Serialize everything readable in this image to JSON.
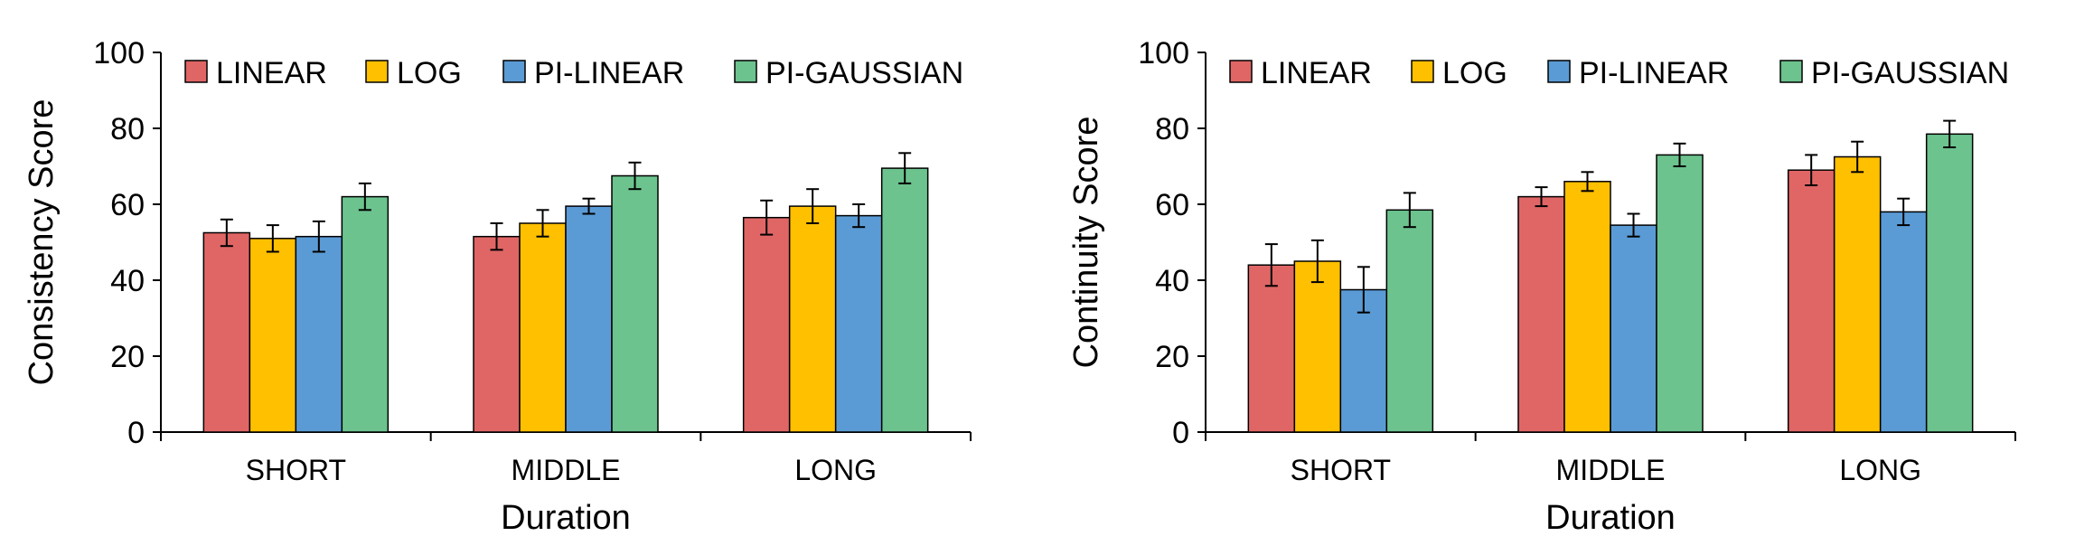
{
  "colors": {
    "LINEAR": "#e06666",
    "LOG": "#ffc000",
    "PI-LINEAR": "#5b9bd5",
    "PI-GAUSSIAN": "#6cc38e",
    "axis": "#000000"
  },
  "chart_data": [
    {
      "type": "bar",
      "title": "",
      "xlabel": "Duration",
      "ylabel": "Consistency Score",
      "ylim": [
        0,
        100
      ],
      "yticks": [
        "0",
        "20",
        "40",
        "60",
        "80",
        "100"
      ],
      "grid": false,
      "legend_position": "top",
      "categories": [
        "SHORT",
        "MIDDLE",
        "LONG"
      ],
      "series": [
        {
          "name": "LINEAR",
          "values": [
            52.5,
            51.5,
            56.5
          ],
          "errors": [
            3.5,
            3.5,
            4.5
          ]
        },
        {
          "name": "LOG",
          "values": [
            51.0,
            55.0,
            59.5
          ],
          "errors": [
            3.5,
            3.5,
            4.5
          ]
        },
        {
          "name": "PI-LINEAR",
          "values": [
            51.5,
            59.5,
            57.0
          ],
          "errors": [
            4.0,
            2.0,
            3.0
          ]
        },
        {
          "name": "PI-GAUSSIAN",
          "values": [
            62.0,
            67.5,
            69.5
          ],
          "errors": [
            3.5,
            3.5,
            4.0
          ]
        }
      ]
    },
    {
      "type": "bar",
      "title": "",
      "xlabel": "Duration",
      "ylabel": "Continuity Score",
      "ylim": [
        0,
        100
      ],
      "yticks": [
        "0",
        "20",
        "40",
        "60",
        "80",
        "100"
      ],
      "grid": false,
      "legend_position": "top",
      "categories": [
        "SHORT",
        "MIDDLE",
        "LONG"
      ],
      "series": [
        {
          "name": "LINEAR",
          "values": [
            44.0,
            62.0,
            69.0
          ],
          "errors": [
            5.5,
            2.5,
            4.0
          ]
        },
        {
          "name": "LOG",
          "values": [
            45.0,
            66.0,
            72.5
          ],
          "errors": [
            5.5,
            2.5,
            4.0
          ]
        },
        {
          "name": "PI-LINEAR",
          "values": [
            37.5,
            54.5,
            58.0
          ],
          "errors": [
            6.0,
            3.0,
            3.5
          ]
        },
        {
          "name": "PI-GAUSSIAN",
          "values": [
            58.5,
            73.0,
            78.5
          ],
          "errors": [
            4.5,
            3.0,
            3.5
          ]
        }
      ]
    }
  ]
}
